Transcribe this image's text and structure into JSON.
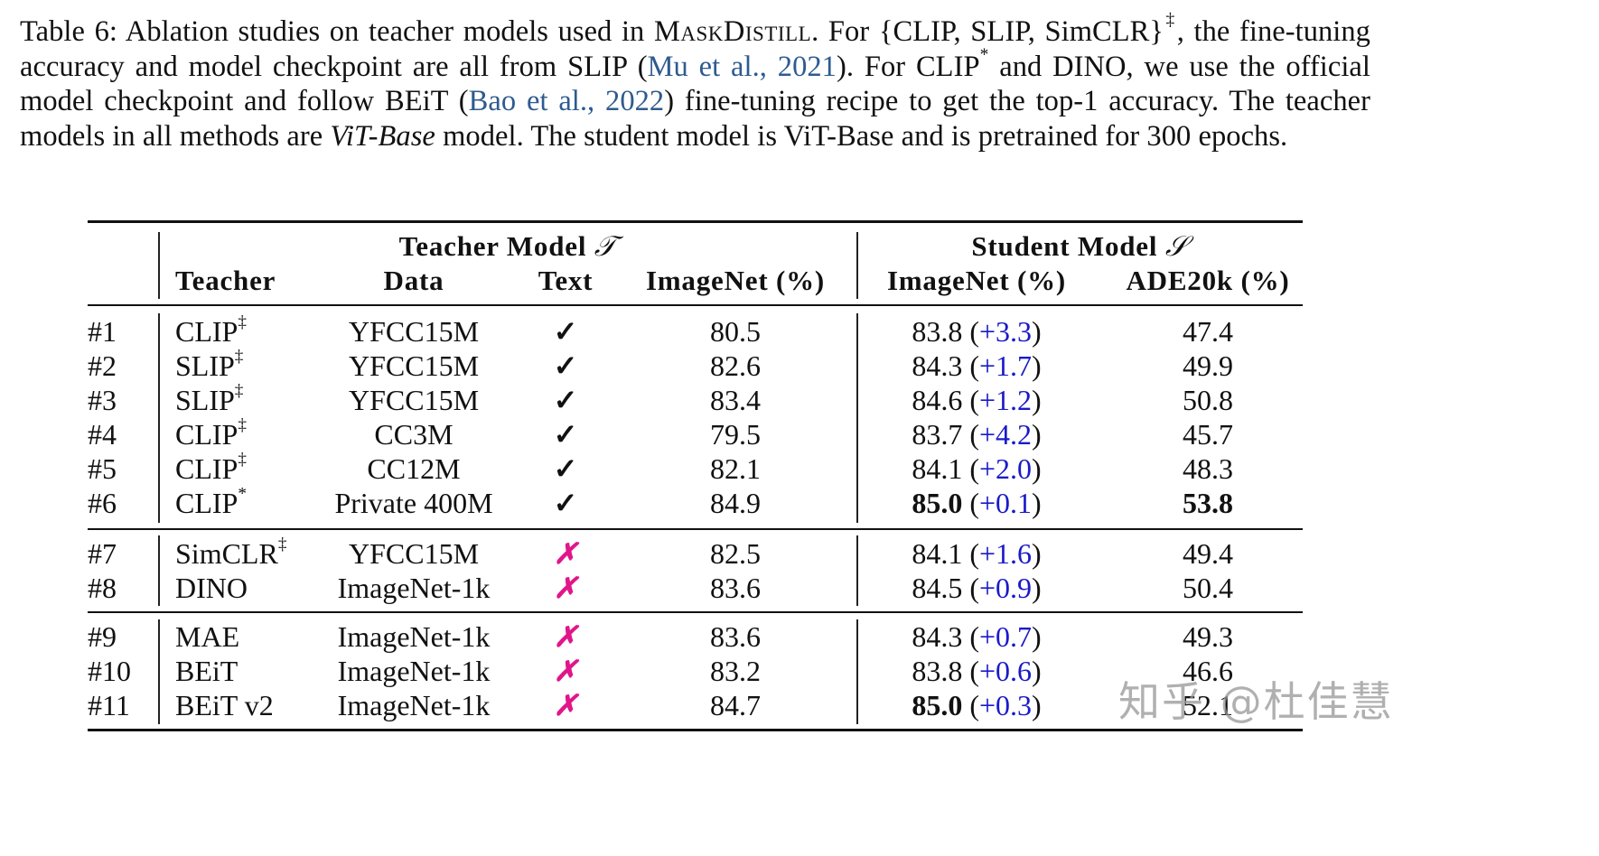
{
  "caption": {
    "label": "Table 6:",
    "text_1": "Ablation studies on teacher models used in ",
    "method_name": "MaskDistill",
    "text_2": ".  For {CLIP, SLIP, SimCLR}",
    "dagger": "‡",
    "text_3": ", the fine-tuning accuracy and model checkpoint are all from SLIP (",
    "cite_1": "Mu et al., 2021",
    "text_4": "). For CLIP",
    "star": "*",
    "text_5": " and DINO, we use the official model checkpoint and follow BEiT (",
    "cite_2": "Bao et al., 2022",
    "text_6": ") fine-tuning recipe to get the top-1 accuracy. The teacher models in all methods are ",
    "italic": "ViT-Base",
    "text_7": " model. The student model is ViT-Base and is pretrained for 300 epochs."
  },
  "table": {
    "group_headers": {
      "teacher": "Teacher Model",
      "teacher_symbol": "𝒯",
      "student": "Student Model",
      "student_symbol": "𝒮"
    },
    "columns": [
      "Teacher",
      "Data",
      "Text",
      "ImageNet (%)",
      "ImageNet (%)",
      "ADE20k (%)"
    ],
    "rows": [
      {
        "id": "#1",
        "teacher": "CLIP",
        "mark": "‡",
        "data": "YFCC15M",
        "text": "✓",
        "teacher_imagenet": "80.5",
        "student_imagenet": "83.8",
        "delta": "+3.3",
        "ade20k": "47.4"
      },
      {
        "id": "#2",
        "teacher": "SLIP",
        "mark": "‡",
        "data": "YFCC15M",
        "text": "✓",
        "teacher_imagenet": "82.6",
        "student_imagenet": "84.3",
        "delta": "+1.7",
        "ade20k": "49.9"
      },
      {
        "id": "#3",
        "teacher": "SLIP",
        "mark": "‡",
        "data": "YFCC15M",
        "text": "✓",
        "teacher_imagenet": "83.4",
        "student_imagenet": "84.6",
        "delta": "+1.2",
        "ade20k": "50.8"
      },
      {
        "id": "#4",
        "teacher": "CLIP",
        "mark": "‡",
        "data": "CC3M",
        "text": "✓",
        "teacher_imagenet": "79.5",
        "student_imagenet": "83.7",
        "delta": "+4.2",
        "ade20k": "45.7"
      },
      {
        "id": "#5",
        "teacher": "CLIP",
        "mark": "‡",
        "data": "CC12M",
        "text": "✓",
        "teacher_imagenet": "82.1",
        "student_imagenet": "84.1",
        "delta": "+2.0",
        "ade20k": "48.3"
      },
      {
        "id": "#6",
        "teacher": "CLIP",
        "mark": "*",
        "data": "Private 400M",
        "text": "✓",
        "teacher_imagenet": "84.9",
        "student_imagenet": "85.0",
        "delta": "+0.1",
        "ade20k": "53.8",
        "bold_student": true,
        "bold_ade": true
      },
      {
        "id": "#7",
        "teacher": "SimCLR",
        "mark": "‡",
        "data": "YFCC15M",
        "text": "✗",
        "teacher_imagenet": "82.5",
        "student_imagenet": "84.1",
        "delta": "+1.6",
        "ade20k": "49.4"
      },
      {
        "id": "#8",
        "teacher": "DINO",
        "mark": "",
        "data": "ImageNet-1k",
        "text": "✗",
        "teacher_imagenet": "83.6",
        "student_imagenet": "84.5",
        "delta": "+0.9",
        "ade20k": "50.4"
      },
      {
        "id": "#9",
        "teacher": "MAE",
        "mark": "",
        "data": "ImageNet-1k",
        "text": "✗",
        "teacher_imagenet": "83.6",
        "student_imagenet": "84.3",
        "delta": "+0.7",
        "ade20k": "49.3"
      },
      {
        "id": "#10",
        "teacher": "BEiT",
        "mark": "",
        "data": "ImageNet-1k",
        "text": "✗",
        "teacher_imagenet": "83.2",
        "student_imagenet": "83.8",
        "delta": "+0.6",
        "ade20k": "46.6"
      },
      {
        "id": "#11",
        "teacher": "BEiT v2",
        "mark": "",
        "data": "ImageNet-1k",
        "text": "✗",
        "teacher_imagenet": "84.7",
        "student_imagenet": "85.0",
        "delta": "+0.3",
        "ade20k": "52.1",
        "bold_student": true
      }
    ]
  },
  "colors": {
    "citation": "#2e5b8f",
    "delta": "#1a1ac8",
    "cross": "#e0168a",
    "check": "#111111"
  },
  "watermark": "知乎 @杜佳慧"
}
